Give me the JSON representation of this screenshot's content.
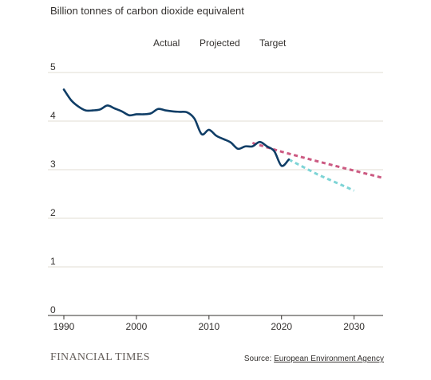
{
  "chart_data": {
    "type": "line",
    "title": "",
    "subtitle": "Billion tonnes of carbon dioxide equivalent",
    "xlabel": "",
    "ylabel": "",
    "xlim": [
      1990,
      2034
    ],
    "ylim": [
      0,
      5
    ],
    "x_ticks": [
      1990,
      2000,
      2010,
      2020,
      2030
    ],
    "y_ticks": [
      0,
      1,
      2,
      3,
      4,
      5
    ],
    "grid": "horizontal",
    "legend": "top",
    "series": [
      {
        "name": "Actual",
        "style": "solid",
        "color": "#0f3d66",
        "x": [
          1990,
          1991,
          1992,
          1993,
          1994,
          1995,
          1996,
          1997,
          1998,
          1999,
          2000,
          2001,
          2002,
          2003,
          2004,
          2005,
          2006,
          2007,
          2008,
          2009,
          2010,
          2011,
          2012,
          2013,
          2014,
          2015,
          2016,
          2017,
          2018,
          2019,
          2020,
          2021
        ],
        "y": [
          4.65,
          4.43,
          4.3,
          4.22,
          4.22,
          4.24,
          4.32,
          4.26,
          4.2,
          4.12,
          4.14,
          4.14,
          4.16,
          4.25,
          4.22,
          4.2,
          4.19,
          4.18,
          4.05,
          3.73,
          3.82,
          3.7,
          3.63,
          3.56,
          3.43,
          3.48,
          3.48,
          3.57,
          3.48,
          3.38,
          3.08,
          3.21
        ]
      },
      {
        "name": "Projected",
        "style": "dashed",
        "color": "#7ed4d6",
        "x": [
          2021,
          2025,
          2030
        ],
        "y": [
          3.21,
          2.9,
          2.57
        ]
      },
      {
        "name": "Target",
        "style": "dashed",
        "color": "#cc5a82",
        "x": [
          2016,
          2020,
          2025,
          2030,
          2034
        ],
        "y": [
          3.55,
          3.37,
          3.17,
          2.98,
          2.83
        ]
      }
    ]
  },
  "footer": {
    "brand": "FINANCIAL TIMES",
    "source_prefix": "Source: ",
    "source_name": "European Environment Agency"
  }
}
